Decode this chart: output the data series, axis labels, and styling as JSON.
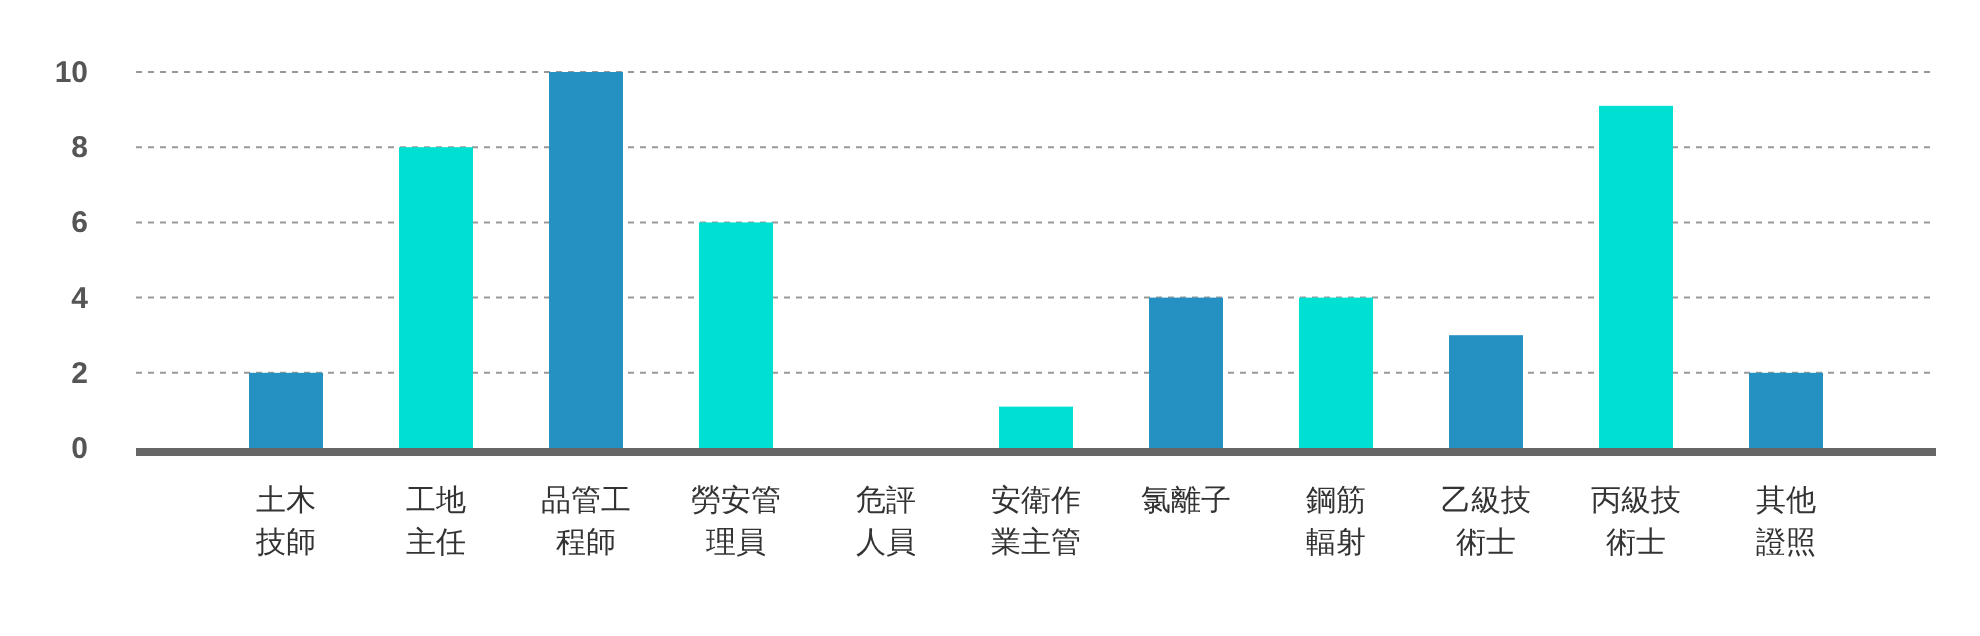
{
  "chart_data": {
    "type": "bar",
    "categories": [
      "土木技師",
      "工地主任",
      "品管工程師",
      "勞安管理員",
      "危評人員",
      "安衛作業主管",
      "氯離子",
      "鋼筋輻射",
      "乙級技術士",
      "丙級技術士",
      "其他證照"
    ],
    "values": [
      2,
      8,
      10,
      6,
      0,
      1.1,
      4,
      4,
      3,
      9.1,
      2
    ],
    "colors": [
      "#2491c2",
      "#00e0d2",
      "#2491c2",
      "#00e0d2",
      "#2491c2",
      "#00e0d2",
      "#2491c2",
      "#00e0d2",
      "#2491c2",
      "#00e0d2",
      "#2491c2"
    ],
    "ylim": [
      0,
      10
    ],
    "yticks": [
      0,
      2,
      4,
      6,
      8,
      10
    ],
    "grid": "y"
  }
}
